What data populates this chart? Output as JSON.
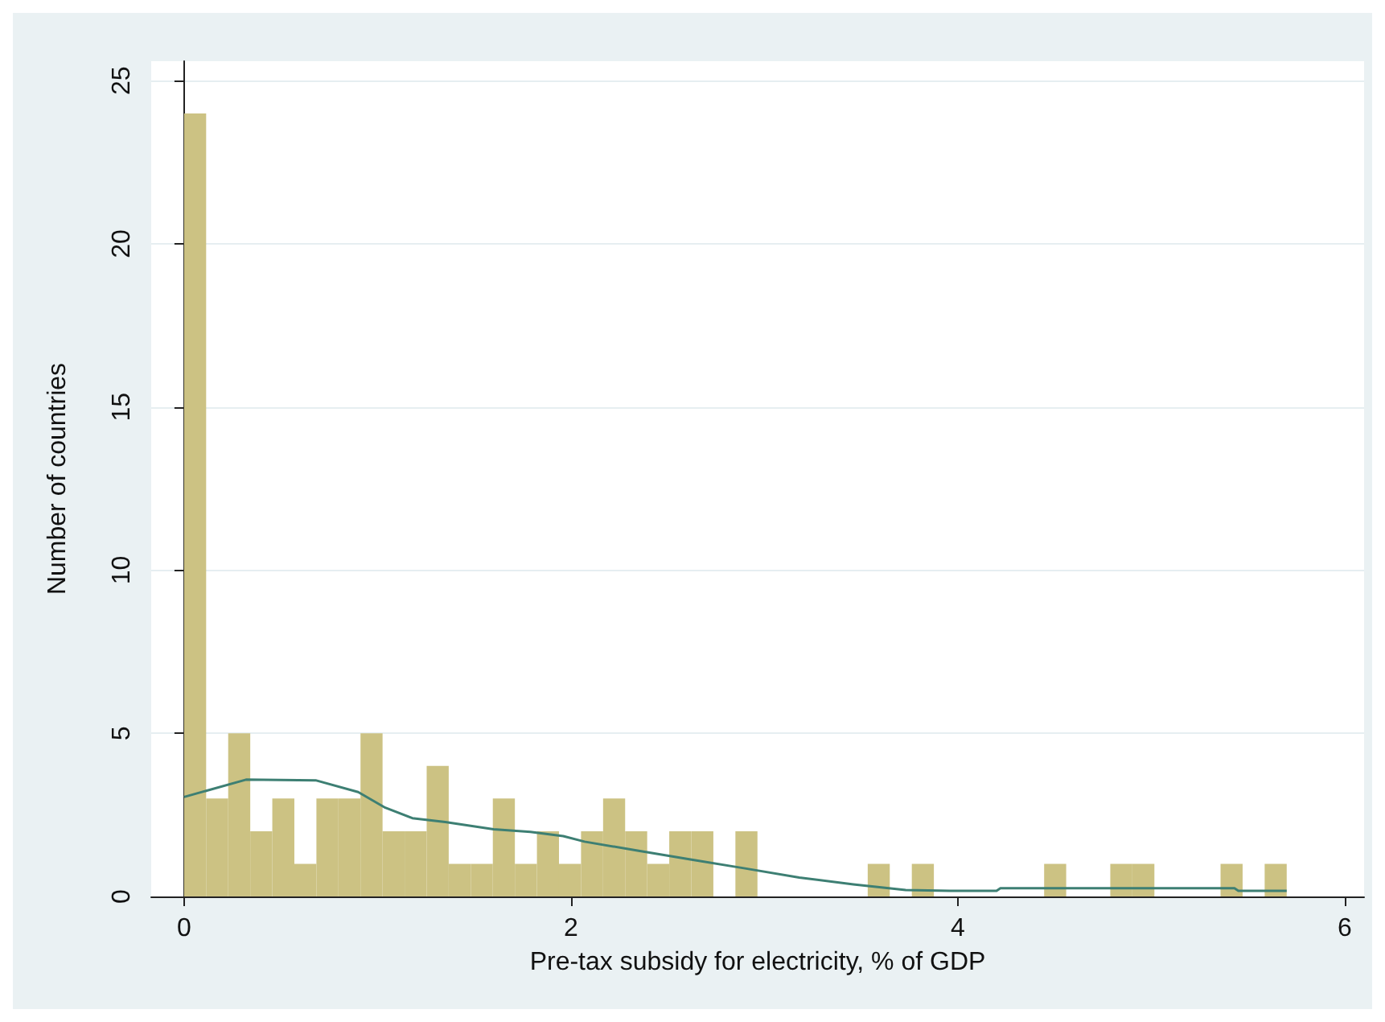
{
  "chart_data": {
    "type": "histogram",
    "xlabel": "Pre-tax subsidy for electricity, % of GDP",
    "ylabel": "Number of countries",
    "bins": [
      0,
      0.114,
      0.228,
      0.342,
      0.456,
      0.57,
      0.684,
      0.798,
      0.912,
      1.026,
      1.14,
      1.254,
      1.368,
      1.482,
      1.596,
      1.71,
      1.824,
      1.938,
      2.052,
      2.166,
      2.28,
      2.394,
      2.508,
      2.622,
      2.736,
      2.85,
      2.964,
      3.078,
      3.192,
      3.306,
      3.42,
      3.534,
      3.648,
      3.762,
      3.876,
      3.99,
      4.104,
      4.218,
      4.332,
      4.446,
      4.56,
      4.674,
      4.788,
      4.902,
      5.016,
      5.13,
      5.244,
      5.358,
      5.472,
      5.586,
      5.7
    ],
    "values": [
      24,
      3,
      5,
      2,
      3,
      1,
      3,
      3,
      5,
      2,
      2,
      4,
      1,
      1,
      3,
      1,
      2,
      1,
      2,
      3,
      2,
      1,
      2,
      2,
      0,
      2,
      0,
      0,
      0,
      0,
      0,
      1,
      0,
      1,
      0,
      0,
      0,
      0,
      0,
      1,
      0,
      0,
      1,
      1,
      0,
      0,
      0,
      1,
      0,
      1
    ],
    "color": "#ccc283",
    "series": [
      {
        "type": "line",
        "color": "#3d7f73",
        "x": [
          0,
          0.32,
          0.68,
          0.9,
          1.04,
          1.18,
          1.35,
          1.6,
          1.79,
          1.96,
          2.07,
          2.35,
          2.63,
          2.9,
          3.18,
          3.46,
          3.73,
          3.96,
          4.2,
          4.22,
          5.43,
          5.45,
          5.7
        ],
        "values": [
          3.05,
          3.58,
          3.56,
          3.2,
          2.72,
          2.4,
          2.28,
          2.06,
          1.98,
          1.85,
          1.68,
          1.4,
          1.12,
          0.86,
          0.58,
          0.37,
          0.2,
          0.17,
          0.17,
          0.25,
          0.25,
          0.17,
          0.17
        ]
      }
    ],
    "xlim": [
      -0.17,
      6.1
    ],
    "xticks": [
      0,
      2,
      4,
      6
    ],
    "ylim": [
      0,
      25.6
    ],
    "yticks": [
      0,
      5,
      10,
      15,
      20,
      25
    ],
    "grid": "y"
  }
}
